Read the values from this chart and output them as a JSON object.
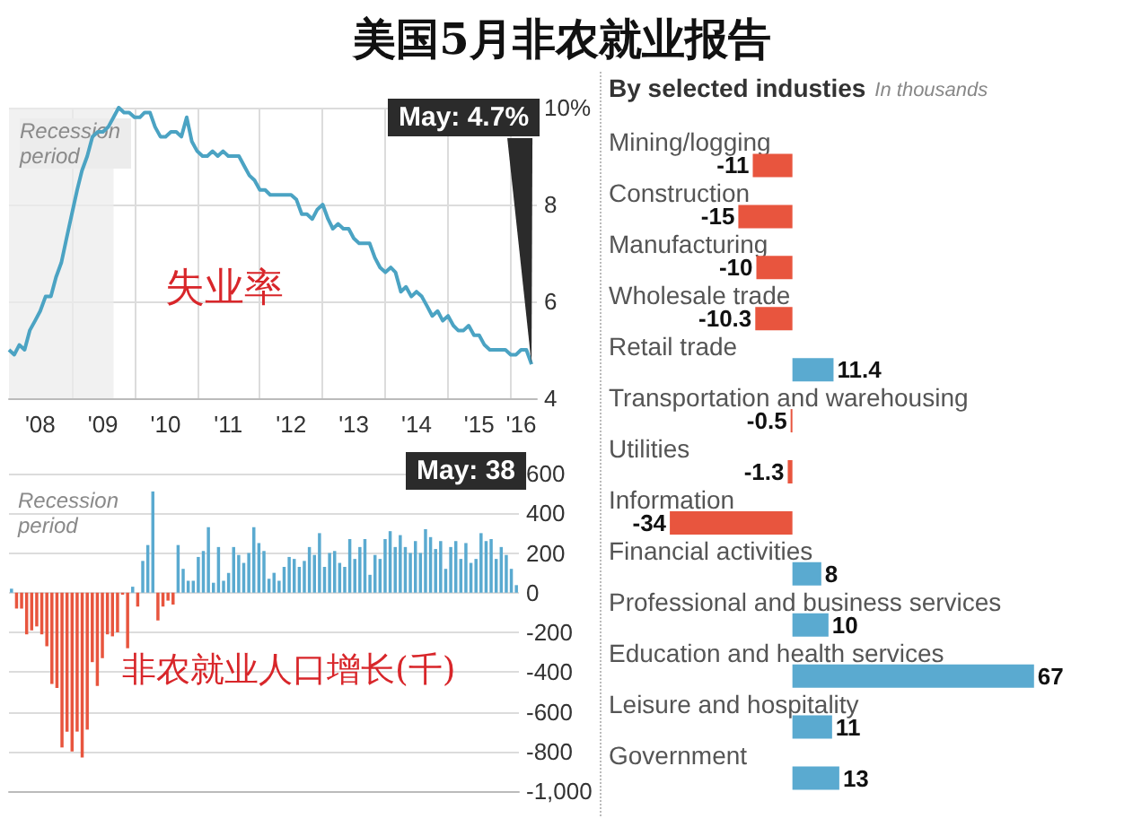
{
  "chart_data": [
    {
      "type": "line",
      "title": "美国5月非农就业报告",
      "x": [
        "2008-01",
        "2008-02",
        "2008-03",
        "2008-04",
        "2008-05",
        "2008-06",
        "2008-07",
        "2008-08",
        "2008-09",
        "2008-10",
        "2008-11",
        "2008-12",
        "2009-01",
        "2009-02",
        "2009-03",
        "2009-04",
        "2009-05",
        "2009-06",
        "2009-07",
        "2009-08",
        "2009-09",
        "2009-10",
        "2009-11",
        "2009-12",
        "2010-01",
        "2010-02",
        "2010-03",
        "2010-04",
        "2010-05",
        "2010-06",
        "2010-07",
        "2010-08",
        "2010-09",
        "2010-10",
        "2010-11",
        "2010-12",
        "2011-01",
        "2011-02",
        "2011-03",
        "2011-04",
        "2011-05",
        "2011-06",
        "2011-07",
        "2011-08",
        "2011-09",
        "2011-10",
        "2011-11",
        "2011-12",
        "2012-01",
        "2012-02",
        "2012-03",
        "2012-04",
        "2012-05",
        "2012-06",
        "2012-07",
        "2012-08",
        "2012-09",
        "2012-10",
        "2012-11",
        "2012-12",
        "2013-01",
        "2013-02",
        "2013-03",
        "2013-04",
        "2013-05",
        "2013-06",
        "2013-07",
        "2013-08",
        "2013-09",
        "2013-10",
        "2013-11",
        "2013-12",
        "2014-01",
        "2014-02",
        "2014-03",
        "2014-04",
        "2014-05",
        "2014-06",
        "2014-07",
        "2014-08",
        "2014-09",
        "2014-10",
        "2014-11",
        "2014-12",
        "2015-01",
        "2015-02",
        "2015-03",
        "2015-04",
        "2015-05",
        "2015-06",
        "2015-07",
        "2015-08",
        "2015-09",
        "2015-10",
        "2015-11",
        "2015-12",
        "2016-01",
        "2016-02",
        "2016-03",
        "2016-04",
        "2016-05"
      ],
      "series": [
        {
          "color": "#4ba3c3",
          "values": [
            5.0,
            4.9,
            5.1,
            5.0,
            5.4,
            5.6,
            5.8,
            6.1,
            6.1,
            6.5,
            6.8,
            7.3,
            7.8,
            8.3,
            8.7,
            9.0,
            9.4,
            9.5,
            9.5,
            9.6,
            9.8,
            10.0,
            9.9,
            9.9,
            9.8,
            9.8,
            9.9,
            9.9,
            9.6,
            9.4,
            9.4,
            9.5,
            9.5,
            9.4,
            9.8,
            9.3,
            9.1,
            9.0,
            9.0,
            9.1,
            9.0,
            9.1,
            9.0,
            9.0,
            9.0,
            8.8,
            8.6,
            8.5,
            8.3,
            8.3,
            8.2,
            8.2,
            8.2,
            8.2,
            8.2,
            8.1,
            7.8,
            7.8,
            7.7,
            7.9,
            8.0,
            7.7,
            7.5,
            7.6,
            7.5,
            7.5,
            7.3,
            7.2,
            7.2,
            7.2,
            6.9,
            6.7,
            6.6,
            6.7,
            6.6,
            6.2,
            6.3,
            6.1,
            6.2,
            6.1,
            5.9,
            5.7,
            5.8,
            5.6,
            5.7,
            5.5,
            5.4,
            5.4,
            5.5,
            5.3,
            5.3,
            5.1,
            5.0,
            5.0,
            5.0,
            5.0,
            4.9,
            4.9,
            5.0,
            5.0,
            4.7
          ]
        }
      ],
      "xlim": [
        "2008-01",
        "2016-06"
      ],
      "xticks": [
        {
          "value": "2008-07",
          "label": "'08"
        },
        {
          "value": "2009-01",
          "label": null
        },
        {
          "value": "2009-07",
          "label": "'09"
        },
        {
          "value": "2010-01",
          "label": null
        },
        {
          "value": "2010-07",
          "label": "'10"
        },
        {
          "value": "2011-01",
          "label": null
        },
        {
          "value": "2011-07",
          "label": "'11"
        },
        {
          "value": "2012-01",
          "label": null
        },
        {
          "value": "2012-07",
          "label": "'12"
        },
        {
          "value": "2013-01",
          "label": null
        },
        {
          "value": "2013-07",
          "label": "'13"
        },
        {
          "value": "2014-01",
          "label": null
        },
        {
          "value": "2014-07",
          "label": "'14"
        },
        {
          "value": "2015-01",
          "label": null
        },
        {
          "value": "2015-07",
          "label": "'15"
        },
        {
          "value": "2016-01",
          "label": null
        },
        {
          "value": "2016-03",
          "label": "'16"
        }
      ],
      "ylim": [
        4,
        10
      ],
      "yticks": [
        4,
        6,
        8,
        {
          "value": 10,
          "label": "10%"
        }
      ],
      "bands": [
        {
          "axis": "x",
          "from": "2008-01",
          "to": "2009-09",
          "label": "Recession period",
          "color": "#ececec"
        }
      ],
      "annotations": [
        "失业率",
        {
          "text": "May: 4.7%",
          "x": "2016-05",
          "y": 4.7
        }
      ],
      "grid": true,
      "marker": "none",
      "line_style": "solid"
    },
    {
      "type": "bar",
      "categories": [
        null,
        null,
        null,
        null,
        null,
        null,
        null,
        null,
        null,
        null,
        null,
        null,
        null,
        null,
        null,
        null,
        null,
        null,
        null,
        null,
        null,
        null,
        null,
        null,
        null,
        null,
        null,
        null,
        null,
        null,
        null,
        null,
        null,
        null,
        null,
        null,
        null,
        null,
        null,
        null,
        null,
        null,
        null,
        null,
        null,
        null,
        null,
        null,
        null,
        null,
        null,
        null,
        null,
        null,
        null,
        null,
        null,
        null,
        null,
        null,
        null,
        null,
        null,
        null,
        null,
        null,
        null,
        null,
        null,
        null,
        null,
        null,
        null,
        null,
        null,
        null,
        null,
        null,
        null,
        null,
        null,
        null,
        null,
        null,
        null,
        null,
        null,
        null,
        null,
        null,
        null,
        null,
        null,
        null,
        null,
        null,
        null,
        null,
        null,
        null,
        null
      ],
      "values": [
        20,
        -80,
        -80,
        -210,
        -190,
        -170,
        -210,
        -270,
        -460,
        -480,
        -780,
        -700,
        -800,
        -700,
        -830,
        -690,
        -350,
        -470,
        -330,
        -210,
        -220,
        -200,
        -10,
        -280,
        30,
        -70,
        160,
        240,
        510,
        -140,
        -70,
        -40,
        -60,
        240,
        120,
        60,
        60,
        180,
        210,
        330,
        50,
        230,
        60,
        100,
        230,
        190,
        150,
        200,
        330,
        250,
        210,
        70,
        100,
        60,
        130,
        180,
        170,
        130,
        160,
        230,
        190,
        300,
        130,
        200,
        210,
        150,
        130,
        270,
        170,
        230,
        270,
        90,
        190,
        170,
        270,
        310,
        230,
        290,
        230,
        200,
        260,
        200,
        320,
        280,
        220,
        260,
        120,
        230,
        260,
        170,
        250,
        150,
        170,
        300,
        260,
        270,
        170,
        230,
        190,
        120,
        38
      ],
      "colors": [
        "#5aaad0",
        "#e8553e",
        "#e8553e",
        "#e8553e",
        "#e8553e",
        "#e8553e",
        "#e8553e",
        "#e8553e",
        "#e8553e",
        "#e8553e",
        "#e8553e",
        "#e8553e",
        "#e8553e",
        "#e8553e",
        "#e8553e",
        "#e8553e",
        "#e8553e",
        "#e8553e",
        "#e8553e",
        "#e8553e",
        "#e8553e",
        "#e8553e",
        "#e8553e",
        "#e8553e",
        "#5aaad0",
        "#e8553e",
        "#5aaad0",
        "#5aaad0",
        "#5aaad0",
        "#e8553e",
        "#e8553e",
        "#e8553e",
        "#e8553e",
        "#5aaad0",
        "#5aaad0",
        "#5aaad0",
        "#5aaad0",
        "#5aaad0",
        "#5aaad0",
        "#5aaad0",
        "#5aaad0",
        "#5aaad0",
        "#5aaad0",
        "#5aaad0",
        "#5aaad0",
        "#5aaad0",
        "#5aaad0",
        "#5aaad0",
        "#5aaad0",
        "#5aaad0",
        "#5aaad0",
        "#5aaad0",
        "#5aaad0",
        "#5aaad0",
        "#5aaad0",
        "#5aaad0",
        "#5aaad0",
        "#5aaad0",
        "#5aaad0",
        "#5aaad0",
        "#5aaad0",
        "#5aaad0",
        "#5aaad0",
        "#5aaad0",
        "#5aaad0",
        "#5aaad0",
        "#5aaad0",
        "#5aaad0",
        "#5aaad0",
        "#5aaad0",
        "#5aaad0",
        "#5aaad0",
        "#5aaad0",
        "#5aaad0",
        "#5aaad0",
        "#5aaad0",
        "#5aaad0",
        "#5aaad0",
        "#5aaad0",
        "#5aaad0",
        "#5aaad0",
        "#5aaad0",
        "#5aaad0",
        "#5aaad0",
        "#5aaad0",
        "#5aaad0",
        "#5aaad0",
        "#5aaad0",
        "#5aaad0",
        "#5aaad0",
        "#5aaad0",
        "#5aaad0",
        "#5aaad0",
        "#5aaad0",
        "#5aaad0",
        "#5aaad0",
        "#5aaad0",
        "#5aaad0",
        "#5aaad0",
        "#5aaad0",
        "#5aaad0"
      ],
      "ylim": [
        -1000,
        600
      ],
      "yticks": [
        {
          "value": -1000,
          "label": "-1,000"
        },
        -800,
        -600,
        -400,
        -200,
        0,
        200,
        400,
        600
      ],
      "annotations": [
        "非农就业人口增长(千)",
        "Recession period",
        "May: 38"
      ],
      "grid": "y",
      "tick_labels": "y"
    },
    {
      "type": "bar",
      "orientation": "horizontal",
      "title": "By selected industies",
      "subtitle": "In thousands",
      "categories": [
        "Mining/logging",
        "Construction",
        "Manufacturing",
        "Wholesale trade",
        "Retail trade",
        "Transportation and warehousing",
        "Utilities",
        "Information",
        "Financial activities",
        "Professional and business services",
        "Education and health services",
        "Leisure and hospitality",
        "Government"
      ],
      "values": [
        -11,
        -15,
        -10,
        -10.3,
        11.4,
        -0.5,
        -1.3,
        -34,
        8,
        10,
        67,
        11,
        13
      ],
      "colors": [
        "#e8553e",
        "#e8553e",
        "#e8553e",
        "#e8553e",
        "#5aaad0",
        "#e8553e",
        "#e8553e",
        "#e8553e",
        "#5aaad0",
        "#5aaad0",
        "#5aaad0",
        "#5aaad0",
        "#5aaad0"
      ],
      "data_labels": true
    }
  ]
}
